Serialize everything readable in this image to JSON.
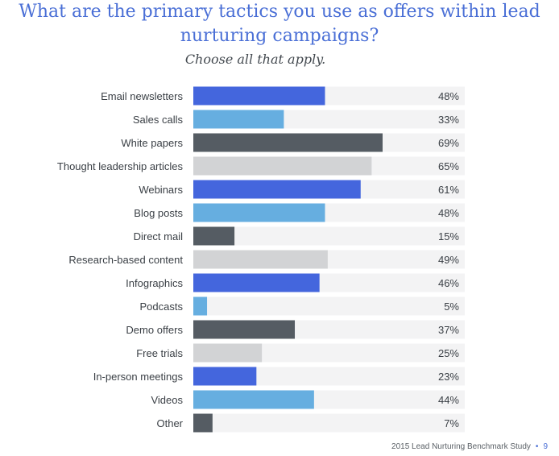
{
  "header": {
    "title_line1": "What are the primary tactics you use as offers within lead",
    "title_line2": "nurturing campaigns?",
    "subtitle": "Choose all that apply."
  },
  "footer": {
    "text": "2015 Lead Nurturing Benchmark Study",
    "page": "9"
  },
  "colors": {
    "blue": "#4466dd",
    "light_blue": "#66aee0",
    "dark_gray": "#555c63",
    "light_gray": "#d2d3d5",
    "track": "#f3f3f4"
  },
  "chart_data": {
    "type": "bar",
    "orientation": "horizontal",
    "categories": [
      "Email newsletters",
      "Sales calls",
      "White papers",
      "Thought leadership articles",
      "Webinars",
      "Blog posts",
      "Direct mail",
      "Research-based content",
      "Infographics",
      "Podcasts",
      "Demo offers",
      "Free trials",
      "In-person meetings",
      "Videos",
      "Other"
    ],
    "values": [
      48,
      33,
      69,
      65,
      61,
      48,
      15,
      49,
      46,
      5,
      37,
      25,
      23,
      44,
      7
    ],
    "value_labels": [
      "48%",
      "33%",
      "69%",
      "65%",
      "61%",
      "48%",
      "15%",
      "49%",
      "46%",
      "5%",
      "37%",
      "25%",
      "23%",
      "44%",
      "7%"
    ],
    "bar_colors": [
      "blue",
      "light_blue",
      "dark_gray",
      "light_gray",
      "blue",
      "light_blue",
      "dark_gray",
      "light_gray",
      "blue",
      "light_blue",
      "dark_gray",
      "light_gray",
      "blue",
      "light_blue",
      "dark_gray"
    ],
    "xlim": [
      0,
      100
    ],
    "grid": false,
    "legend": "none"
  }
}
